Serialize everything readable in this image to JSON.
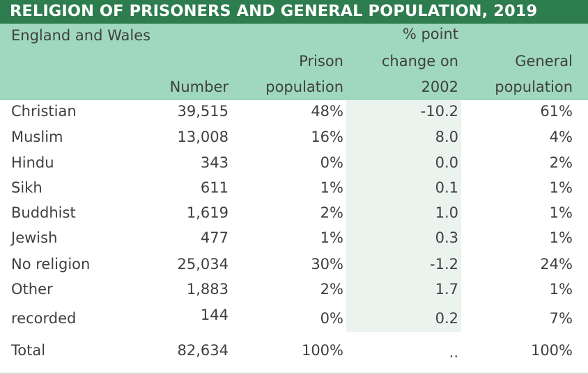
{
  "title": "RELIGION OF PRISONERS AND GENERAL POPULATION, 2019",
  "subtitle": "England and Wales",
  "headers": {
    "number": "Number",
    "prison_line1": "Prison",
    "prison_line2": "population",
    "change_line1": "% point",
    "change_line2": "change on",
    "change_line3": "2002",
    "general_line1": "General",
    "general_line2": "population"
  },
  "rows": [
    {
      "religion": "Christian",
      "number": "39,515",
      "prison": "48%",
      "change": "-10.2",
      "general": "61%"
    },
    {
      "religion": "Muslim",
      "number": "13,008",
      "prison": "16%",
      "change": "8.0",
      "general": "4%"
    },
    {
      "religion": "Hindu",
      "number": "343",
      "prison": "0%",
      "change": "0.0",
      "general": "2%"
    },
    {
      "religion": "Sikh",
      "number": "611",
      "prison": "1%",
      "change": "0.1",
      "general": "1%"
    },
    {
      "religion": "Buddhist",
      "number": "1,619",
      "prison": "2%",
      "change": "1.0",
      "general": "1%"
    },
    {
      "religion": "Jewish",
      "number": "477",
      "prison": "1%",
      "change": "0.3",
      "general": "1%"
    },
    {
      "religion": "No religion",
      "number": "25,034",
      "prison": "30%",
      "change": "-1.2",
      "general": "24%"
    },
    {
      "religion": "Other",
      "number": "1,883",
      "prison": "2%",
      "change": "1.7",
      "general": "1%"
    },
    {
      "religion": "recorded",
      "number": "144",
      "prison": "0%",
      "change": "0.2",
      "general": "7%"
    }
  ],
  "total": {
    "religion": "Total",
    "number": "82,634",
    "prison": "100%",
    "change": "..",
    "general": "100%"
  }
}
